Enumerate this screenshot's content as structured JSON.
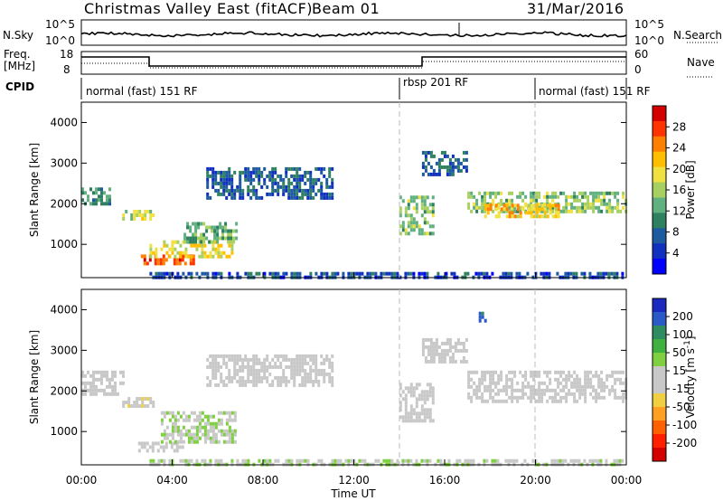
{
  "header": {
    "station": "Christmas Valley East (fitACF)",
    "beam": "Beam 01",
    "date": "31/Mar/2016"
  },
  "top_panels": {
    "nsky_label": "N.Sky",
    "nsky_ticks": [
      "10^5",
      "10^0"
    ],
    "nsearch_label": "N.Search",
    "nsearch_ticks": [
      "10^5",
      "10^0"
    ],
    "freq_label_1": "Freq.",
    "freq_label_2": "[MHz]",
    "freq_ticks": [
      "18",
      "8"
    ],
    "nave_label": "Nave",
    "nave_ticks": [
      "60",
      "0"
    ],
    "cpid_label": "CPID",
    "cpid_segments": [
      {
        "label": "normal (fast) 151 RF",
        "start": 0,
        "end": 14
      },
      {
        "label": "rbsp 201 RF",
        "start": 14,
        "end": 20
      },
      {
        "label": "normal (fast) 151 RF",
        "start": 20,
        "end": 24
      }
    ]
  },
  "colorbars": {
    "power": {
      "title": "Power [dB]",
      "ticks": [
        "28",
        "24",
        "20",
        "16",
        "12",
        "8",
        "4"
      ],
      "colors": [
        "#d40000",
        "#ff3300",
        "#ff7f00",
        "#ffbf00",
        "#f0e040",
        "#a8d060",
        "#60b080",
        "#2e8060",
        "#1e5aa0",
        "#1030c0",
        "#0000ff"
      ]
    },
    "velocity": {
      "title": "Velocity [m s",
      "title_exp": "-1",
      "title_end": "]",
      "ticks": [
        "200",
        "100",
        "50",
        "15",
        "-15",
        "-50",
        "-100",
        "-200"
      ],
      "colors": [
        "#1a2ac0",
        "#2a5ac8",
        "#2e8c60",
        "#40b040",
        "#7fd040",
        "#c8c8c8",
        "#c8c8c8",
        "#f0d040",
        "#ffa020",
        "#ff6000",
        "#ff2000",
        "#d40000"
      ]
    }
  },
  "chart_data": [
    {
      "type": "heatmap",
      "name": "Power",
      "ylabel": "Slant Range [km]",
      "yticks": [
        1000,
        2000,
        3000,
        4000
      ],
      "ylim": [
        180,
        4500
      ],
      "xlim": [
        0,
        24
      ],
      "clim": [
        0,
        30
      ],
      "regions": [
        {
          "t0": 0.0,
          "t1": 1.2,
          "r0": 2000,
          "r1": 2400,
          "v": 10
        },
        {
          "t0": 1.8,
          "t1": 3.2,
          "r0": 1600,
          "r1": 1850,
          "v": 16
        },
        {
          "t0": 2.5,
          "t1": 5.0,
          "r0": 550,
          "r1": 750,
          "v": 26
        },
        {
          "t0": 3.0,
          "t1": 6.6,
          "r0": 700,
          "r1": 1100,
          "v": 18
        },
        {
          "t0": 4.5,
          "t1": 6.8,
          "r0": 1100,
          "r1": 1550,
          "v": 12
        },
        {
          "t0": 5.5,
          "t1": 11.0,
          "r0": 2100,
          "r1": 2900,
          "v": 6
        },
        {
          "t0": 14.0,
          "t1": 15.5,
          "r0": 1300,
          "r1": 2200,
          "v": 14
        },
        {
          "t0": 15.0,
          "t1": 17.0,
          "r0": 2700,
          "r1": 3300,
          "v": 6
        },
        {
          "t0": 17.0,
          "t1": 24.0,
          "r0": 1800,
          "r1": 2300,
          "v": 14
        },
        {
          "t0": 17.5,
          "t1": 21.0,
          "r0": 1700,
          "r1": 2000,
          "v": 20
        },
        {
          "t0": 3.0,
          "t1": 24.0,
          "r0": 180,
          "r1": 320,
          "v": 5
        }
      ]
    },
    {
      "type": "heatmap",
      "name": "Velocity",
      "ylabel": "Slant Range [km]",
      "yticks": [
        1000,
        2000,
        3000,
        4000
      ],
      "ylim": [
        180,
        4500
      ],
      "xlim": [
        0,
        24
      ],
      "xticks": [
        "00:00",
        "04:00",
        "08:00",
        "12:00",
        "16:00",
        "20:00",
        "00:00"
      ],
      "xlabel": "Time UT",
      "clim": [
        -250,
        250
      ],
      "regions": [
        {
          "t0": 0.0,
          "t1": 1.8,
          "r0": 1900,
          "r1": 2500,
          "v": 0
        },
        {
          "t0": 1.8,
          "t1": 3.2,
          "r0": 1600,
          "r1": 1850,
          "v": -30
        },
        {
          "t0": 2.5,
          "t1": 4.5,
          "r0": 550,
          "r1": 750,
          "v": 0
        },
        {
          "t0": 3.5,
          "t1": 6.8,
          "r0": 700,
          "r1": 1500,
          "v": 40
        },
        {
          "t0": 5.5,
          "t1": 11.0,
          "r0": 2100,
          "r1": 2900,
          "v": 0
        },
        {
          "t0": 14.0,
          "t1": 15.5,
          "r0": 1300,
          "r1": 2200,
          "v": 0
        },
        {
          "t0": 15.0,
          "t1": 17.0,
          "r0": 2700,
          "r1": 3300,
          "v": 0
        },
        {
          "t0": 17.5,
          "t1": 17.8,
          "r0": 3700,
          "r1": 3950,
          "v": 200
        },
        {
          "t0": 17.0,
          "t1": 24.0,
          "r0": 1700,
          "r1": 2500,
          "v": 0
        },
        {
          "t0": 3.0,
          "t1": 24.0,
          "r0": 180,
          "r1": 320,
          "v": 40
        }
      ]
    }
  ]
}
